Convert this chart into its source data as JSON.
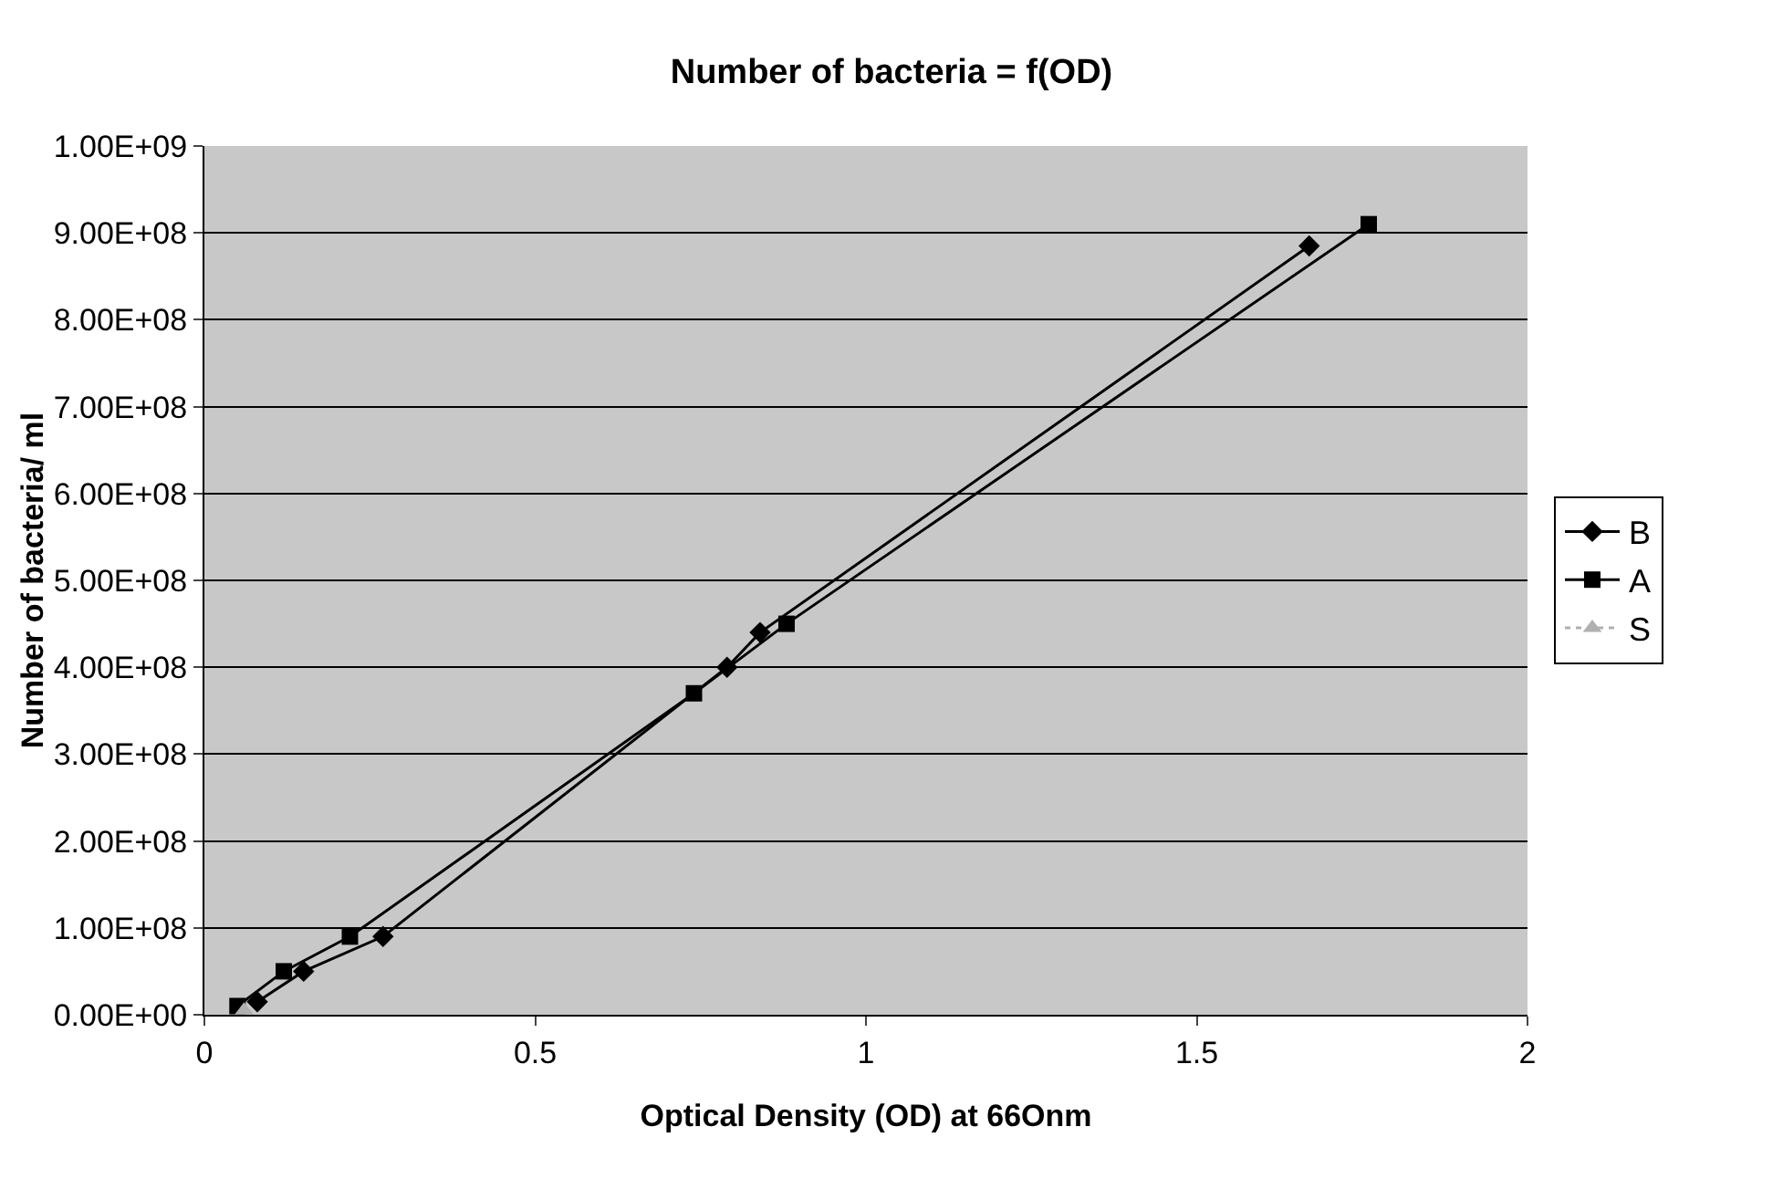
{
  "chart_data": {
    "type": "line",
    "title": "Number of bacteria = f(OD)",
    "xlabel": "Optical Density (OD) at 66Onm",
    "ylabel": "Number of bacteria/ ml",
    "series": [
      {
        "name": "B",
        "color": "#000000",
        "marker": "diamond",
        "x": [
          0.08,
          0.15,
          0.27,
          0.79,
          0.84,
          1.67
        ],
        "values": [
          15000000,
          50000000,
          90000000,
          400000000,
          440000000,
          885000000
        ]
      },
      {
        "name": "A",
        "color": "#000000",
        "marker": "square",
        "x": [
          0.05,
          0.12,
          0.22,
          0.74,
          0.88,
          1.76
        ],
        "values": [
          10000000,
          50000000,
          90000000,
          370000000,
          450000000,
          910000000
        ]
      },
      {
        "name": "S",
        "color": "#b0b0b0",
        "marker": "triangle",
        "line_style": "dotted",
        "x": [
          0.06
        ],
        "values": [
          5000000
        ]
      }
    ],
    "xlim": [
      0,
      2
    ],
    "xticks": [
      0,
      0.5,
      1,
      1.5,
      2
    ],
    "ylim": [
      0,
      1000000000
    ],
    "yticks": [
      {
        "value": 0,
        "label": "0.00E+00"
      },
      {
        "value": 100000000,
        "label": "1.00E+08"
      },
      {
        "value": 200000000,
        "label": "2.00E+08"
      },
      {
        "value": 300000000,
        "label": "3.00E+08"
      },
      {
        "value": 400000000,
        "label": "4.00E+08"
      },
      {
        "value": 500000000,
        "label": "5.00E+08"
      },
      {
        "value": 600000000,
        "label": "6.00E+08"
      },
      {
        "value": 700000000,
        "label": "7.00E+08"
      },
      {
        "value": 800000000,
        "label": "8.00E+08"
      },
      {
        "value": 900000000,
        "label": "9.00E+08"
      },
      {
        "value": 1000000000,
        "label": "1.00E+09"
      }
    ],
    "grid": "y",
    "legend": "right"
  }
}
